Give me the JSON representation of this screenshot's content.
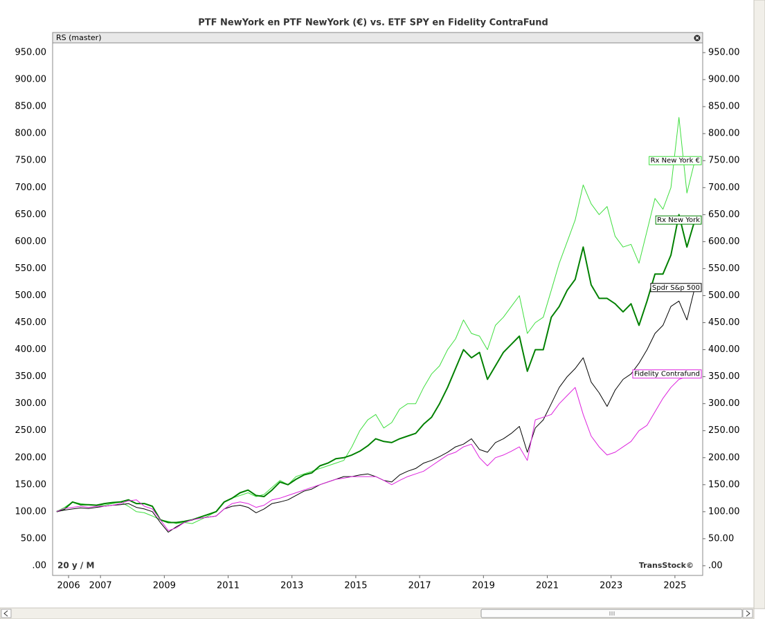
{
  "chart_data": {
    "type": "line",
    "title": "PTF NewYork en PTF NewYork (€) vs. ETF SPY en Fidelity ContraFund",
    "panel_label": "RS (master)",
    "period_label": "20 y / M",
    "watermark": "TransStock©",
    "xlim": [
      2005.5,
      2025.87
    ],
    "xticks": [
      2006,
      2007,
      2009,
      2011,
      2013,
      2015,
      2017,
      2019,
      2021,
      2023,
      2025
    ],
    "ylim": [
      -18,
      968
    ],
    "yticks": [
      {
        "value": 0,
        "label": ".00"
      },
      {
        "value": 50,
        "label": "50.00"
      },
      {
        "value": 100,
        "label": "100.00"
      },
      {
        "value": 150,
        "label": "150.00"
      },
      {
        "value": 200,
        "label": "200.00"
      },
      {
        "value": 250,
        "label": "250.00"
      },
      {
        "value": 300,
        "label": "300.00"
      },
      {
        "value": 350,
        "label": "350.00"
      },
      {
        "value": 400,
        "label": "400.00"
      },
      {
        "value": 450,
        "label": "450.00"
      },
      {
        "value": 500,
        "label": "500.00"
      },
      {
        "value": 550,
        "label": "550.00"
      },
      {
        "value": 600,
        "label": "600.00"
      },
      {
        "value": 650,
        "label": "650.00"
      },
      {
        "value": 700,
        "label": "700.00"
      },
      {
        "value": 750,
        "label": "750.00"
      },
      {
        "value": 800,
        "label": "800.00"
      },
      {
        "value": 850,
        "label": "850.00"
      },
      {
        "value": 900,
        "label": "900.00"
      },
      {
        "value": 950,
        "label": "950.00"
      }
    ],
    "x": [
      2005.625,
      2005.875,
      2006.125,
      2006.375,
      2006.625,
      2006.875,
      2007.125,
      2007.375,
      2007.625,
      2007.875,
      2008.125,
      2008.375,
      2008.625,
      2008.875,
      2009.125,
      2009.375,
      2009.625,
      2009.875,
      2010.125,
      2010.375,
      2010.625,
      2010.875,
      2011.125,
      2011.375,
      2011.625,
      2011.875,
      2012.125,
      2012.375,
      2012.625,
      2012.875,
      2013.125,
      2013.375,
      2013.625,
      2013.875,
      2014.125,
      2014.375,
      2014.625,
      2014.875,
      2015.125,
      2015.375,
      2015.625,
      2015.875,
      2016.125,
      2016.375,
      2016.625,
      2016.875,
      2017.125,
      2017.375,
      2017.625,
      2017.875,
      2018.125,
      2018.375,
      2018.625,
      2018.875,
      2019.125,
      2019.375,
      2019.625,
      2019.875,
      2020.125,
      2020.375,
      2020.625,
      2020.875,
      2021.125,
      2021.375,
      2021.625,
      2021.875,
      2022.125,
      2022.375,
      2022.625,
      2022.875,
      2023.125,
      2023.375,
      2023.625,
      2023.875,
      2024.125,
      2024.375,
      2024.625,
      2024.875,
      2025.125,
      2025.375,
      2025.625
    ],
    "series": [
      {
        "name": "Rx New York €",
        "color": "#3ede3e",
        "line_width": 1,
        "values": [
          100,
          108,
          118,
          115,
          113,
          112,
          112,
          115,
          118,
          110,
          100,
          98,
          92,
          85,
          82,
          78,
          80,
          78,
          85,
          92,
          100,
          118,
          125,
          130,
          135,
          128,
          132,
          145,
          158,
          150,
          165,
          170,
          175,
          180,
          185,
          190,
          195,
          220,
          250,
          270,
          280,
          255,
          265,
          290,
          300,
          300,
          330,
          355,
          370,
          400,
          420,
          455,
          430,
          425,
          400,
          445,
          460,
          480,
          500,
          430,
          450,
          460,
          510,
          560,
          600,
          640,
          705,
          670,
          650,
          665,
          610,
          590,
          595,
          560,
          620,
          680,
          660,
          700,
          830,
          690,
          750
        ]
      },
      {
        "name": "Rx New York",
        "color": "#008000",
        "line_width": 2,
        "values": [
          100,
          105,
          118,
          113,
          113,
          112,
          115,
          117,
          118,
          122,
          115,
          115,
          110,
          85,
          80,
          80,
          82,
          85,
          90,
          95,
          100,
          118,
          125,
          135,
          140,
          130,
          128,
          140,
          155,
          150,
          160,
          168,
          172,
          185,
          190,
          198,
          200,
          205,
          212,
          222,
          235,
          230,
          228,
          235,
          240,
          245,
          262,
          275,
          300,
          330,
          365,
          400,
          385,
          395,
          345,
          370,
          395,
          410,
          425,
          360,
          400,
          400,
          460,
          480,
          510,
          530,
          590,
          520,
          495,
          495,
          485,
          470,
          485,
          445,
          490,
          540,
          540,
          575,
          650,
          590,
          640
        ]
      },
      {
        "name": "Spdr S&p 500",
        "color": "#000000",
        "line_width": 1,
        "values": [
          100,
          103,
          105,
          107,
          106,
          108,
          110,
          112,
          113,
          115,
          108,
          105,
          100,
          80,
          62,
          72,
          80,
          85,
          88,
          90,
          92,
          105,
          110,
          112,
          108,
          98,
          105,
          115,
          118,
          122,
          130,
          138,
          142,
          150,
          155,
          160,
          165,
          165,
          168,
          170,
          165,
          158,
          155,
          168,
          175,
          180,
          190,
          195,
          202,
          210,
          220,
          225,
          235,
          215,
          210,
          228,
          235,
          245,
          258,
          210,
          255,
          270,
          300,
          330,
          350,
          365,
          385,
          340,
          320,
          295,
          325,
          345,
          355,
          375,
          400,
          430,
          445,
          480,
          490,
          455,
          515
        ]
      },
      {
        "name": "Fidelity Contrafund",
        "color": "#dd22dd",
        "line_width": 1,
        "values": [
          100,
          106,
          108,
          110,
          108,
          110,
          110,
          112,
          115,
          120,
          122,
          110,
          105,
          85,
          65,
          70,
          80,
          85,
          88,
          90,
          92,
          105,
          115,
          118,
          115,
          108,
          112,
          122,
          125,
          130,
          135,
          140,
          145,
          150,
          155,
          160,
          162,
          165,
          165,
          165,
          165,
          158,
          150,
          158,
          165,
          170,
          175,
          185,
          195,
          205,
          210,
          220,
          225,
          200,
          185,
          200,
          205,
          212,
          220,
          195,
          270,
          275,
          280,
          300,
          315,
          330,
          280,
          240,
          220,
          205,
          210,
          220,
          230,
          250,
          260,
          285,
          310,
          330,
          345,
          350,
          355
        ]
      }
    ]
  }
}
